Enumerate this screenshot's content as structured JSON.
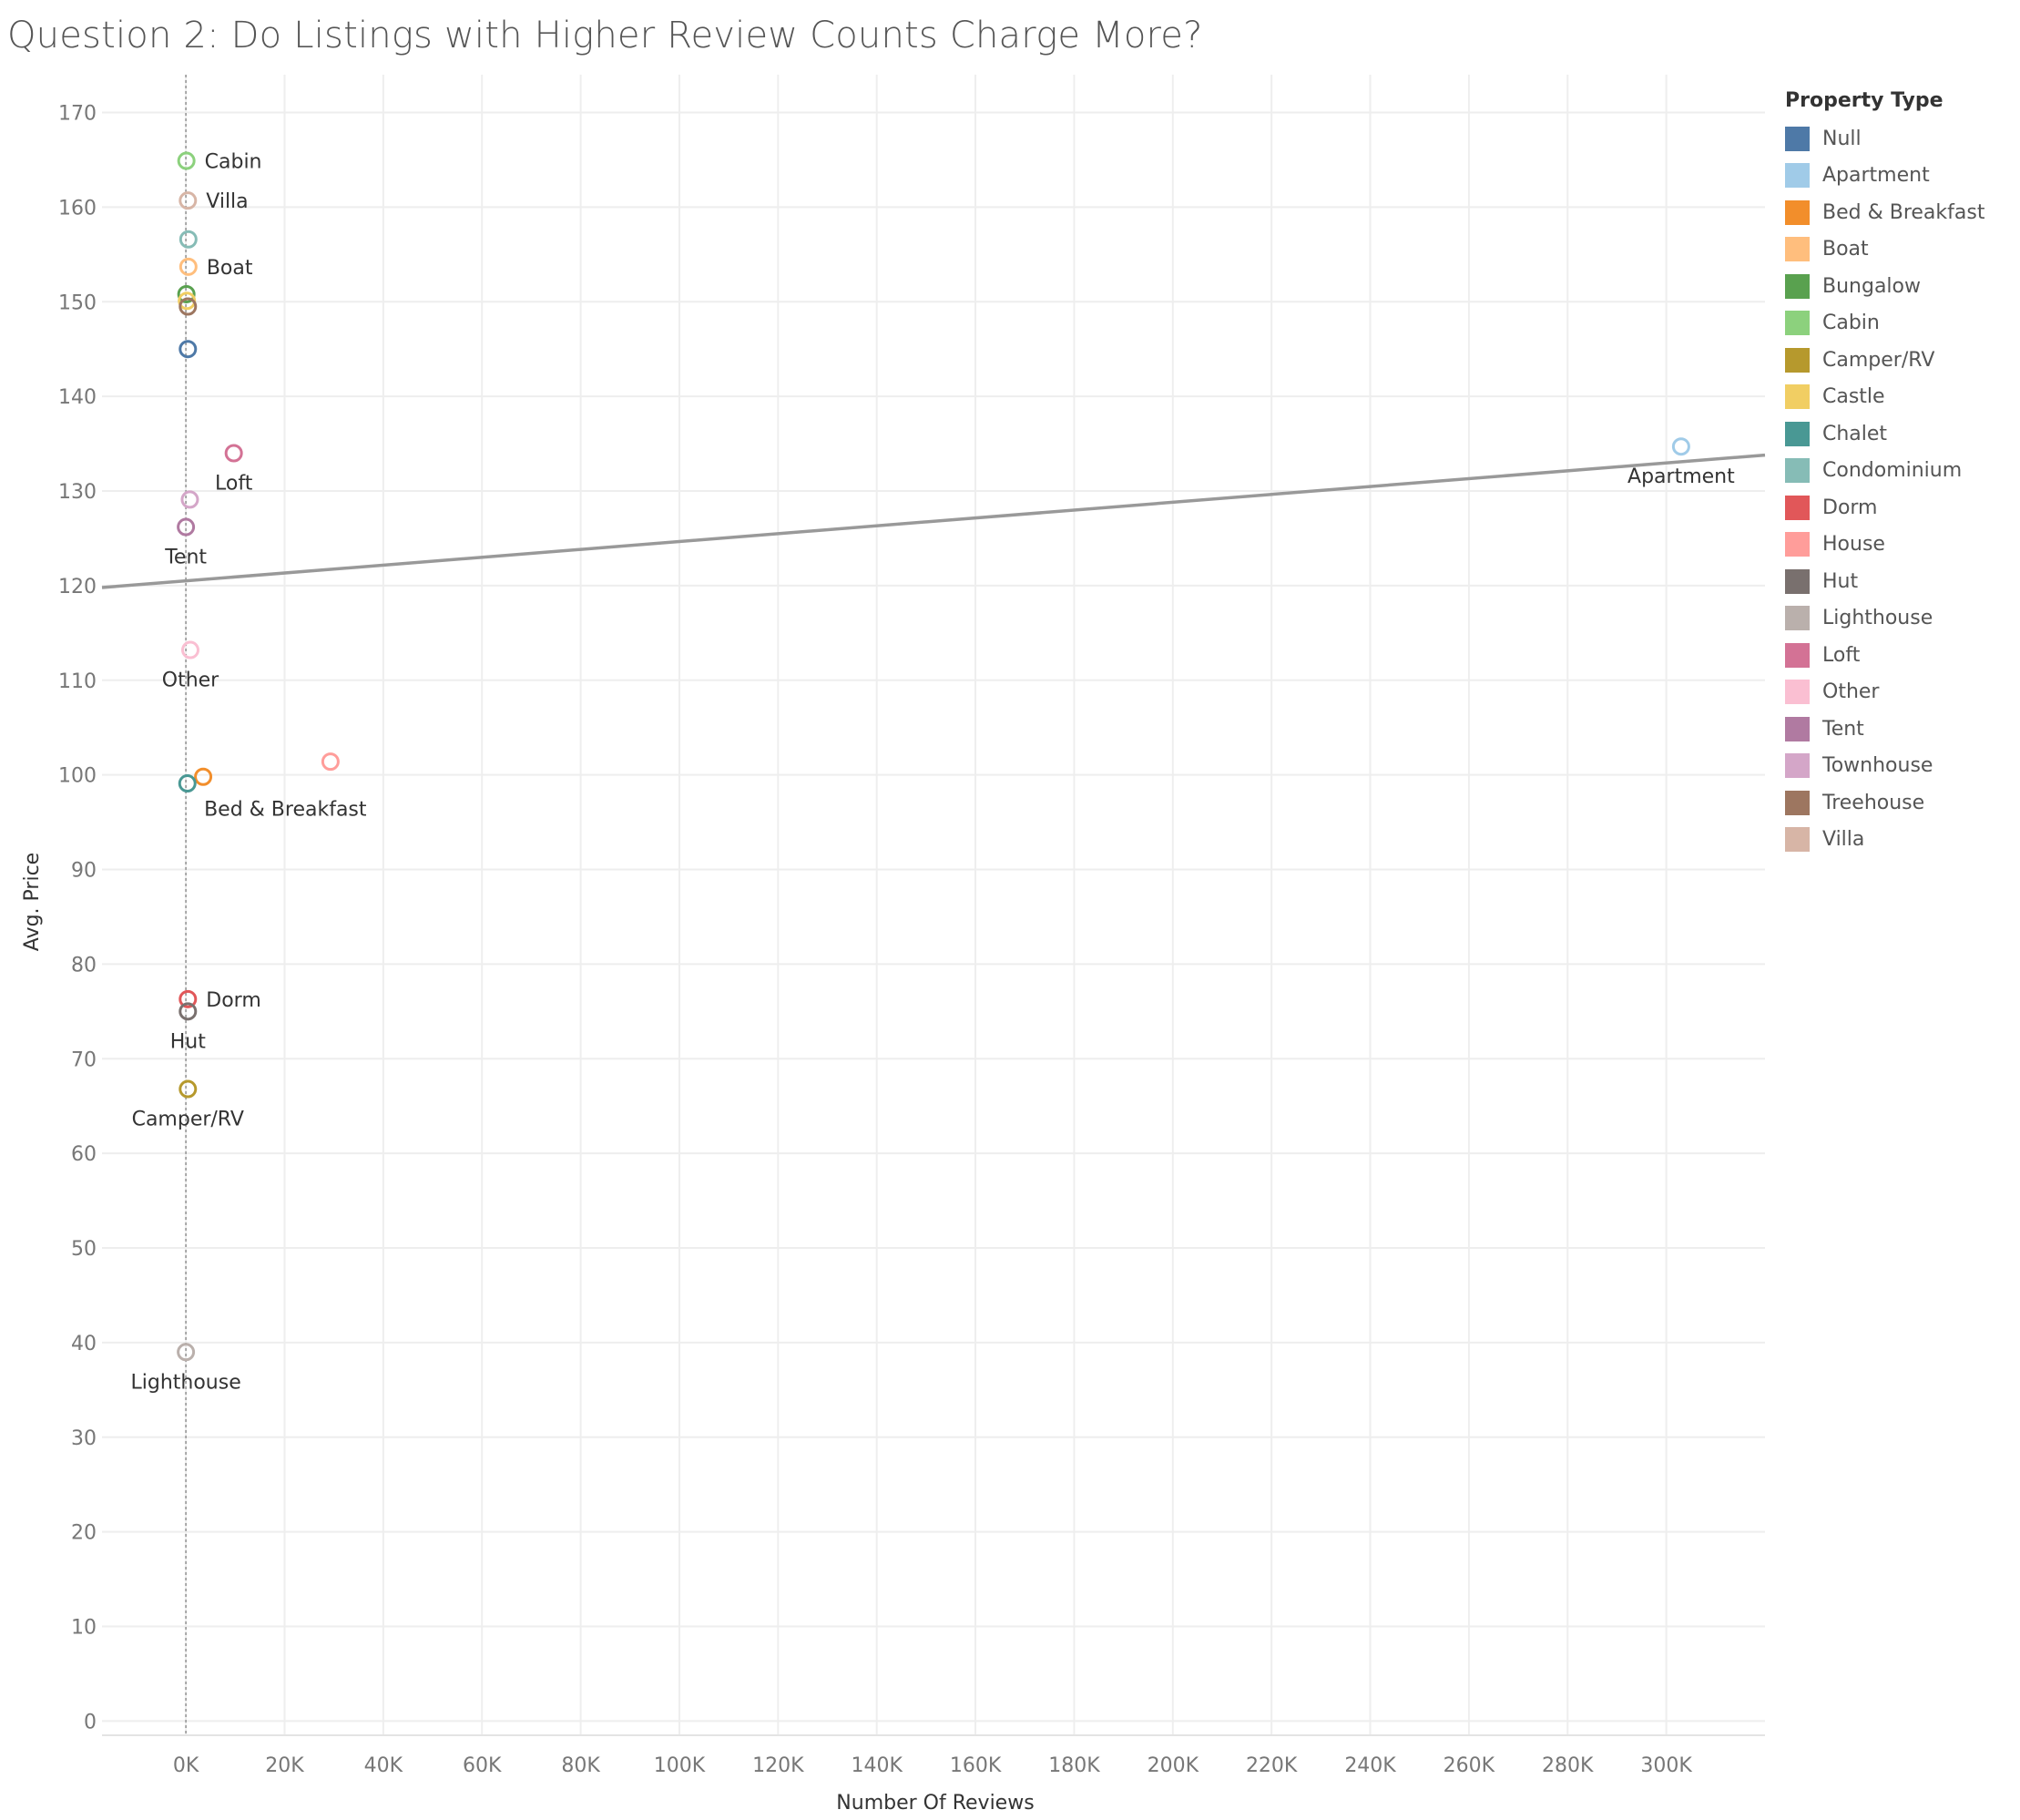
{
  "title": "Question 2: Do Listings with Higher Review Counts Charge More?",
  "chart_data": {
    "type": "scatter",
    "xlabel": "Number Of Reviews",
    "ylabel": "Avg. Price",
    "xlim": [
      -17000,
      320000
    ],
    "ylim": [
      -1.5,
      174
    ],
    "x_ticks": [
      0,
      20000,
      40000,
      60000,
      80000,
      100000,
      120000,
      140000,
      160000,
      180000,
      200000,
      220000,
      240000,
      260000,
      280000,
      300000
    ],
    "x_tick_labels": [
      "0K",
      "20K",
      "40K",
      "60K",
      "80K",
      "100K",
      "120K",
      "140K",
      "160K",
      "180K",
      "200K",
      "220K",
      "240K",
      "260K",
      "280K",
      "300K"
    ],
    "y_ticks": [
      0,
      10,
      20,
      30,
      40,
      50,
      60,
      70,
      80,
      90,
      100,
      110,
      120,
      130,
      140,
      150,
      160,
      170
    ],
    "y_tick_labels": [
      "0",
      "10",
      "20",
      "30",
      "40",
      "50",
      "60",
      "70",
      "80",
      "90",
      "100",
      "110",
      "120",
      "130",
      "140",
      "150",
      "160",
      "170"
    ],
    "grid": true,
    "zero_line": true,
    "trend_line": {
      "x": [
        -17000,
        320000
      ],
      "y": [
        119.8,
        133.8
      ]
    },
    "legend": {
      "title": "Property Type",
      "placement": "right",
      "entries": [
        "Null",
        "Apartment",
        "Bed & Breakfast",
        "Boat",
        "Bungalow",
        "Cabin",
        "Camper/RV",
        "Castle",
        "Chalet",
        "Condominium",
        "Dorm",
        "House",
        "Hut",
        "Lighthouse",
        "Loft",
        "Other",
        "Tent",
        "Townhouse",
        "Treehouse",
        "Villa"
      ]
    },
    "points": [
      {
        "category": "Null",
        "x": 400,
        "y": 145.0,
        "label": "",
        "color": "#4e79a7"
      },
      {
        "category": "Apartment",
        "x": 303000,
        "y": 134.7,
        "label": "Apartment",
        "label_pos": "below",
        "color": "#a0cbe8"
      },
      {
        "category": "Bed & Breakfast",
        "x": 3500,
        "y": 99.8,
        "label": "Bed & Breakfast",
        "label_pos": "below-right",
        "color": "#f28e2b"
      },
      {
        "category": "Boat",
        "x": 500,
        "y": 153.7,
        "label": "Boat",
        "label_pos": "right",
        "color": "#ffbe7d"
      },
      {
        "category": "Bungalow",
        "x": 100,
        "y": 150.8,
        "label": "",
        "color": "#59a14f"
      },
      {
        "category": "Cabin",
        "x": 100,
        "y": 164.9,
        "label": "Cabin",
        "label_pos": "right",
        "color": "#8cd17d"
      },
      {
        "category": "Camper/RV",
        "x": 400,
        "y": 66.8,
        "label": "Camper/RV",
        "label_pos": "below",
        "color": "#b6992d"
      },
      {
        "category": "Castle",
        "x": 200,
        "y": 150.1,
        "label": "",
        "color": "#f1ce63"
      },
      {
        "category": "Chalet",
        "x": 300,
        "y": 99.1,
        "label": "",
        "color": "#499894"
      },
      {
        "category": "Condominium",
        "x": 500,
        "y": 156.6,
        "label": "",
        "color": "#86bcb6"
      },
      {
        "category": "Dorm",
        "x": 400,
        "y": 76.3,
        "label": "Dorm",
        "label_pos": "right",
        "color": "#e15759"
      },
      {
        "category": "House",
        "x": 29300,
        "y": 101.4,
        "label": "",
        "color": "#ff9d9a"
      },
      {
        "category": "Hut",
        "x": 400,
        "y": 75.0,
        "label": "Hut",
        "label_pos": "below",
        "color": "#79706e"
      },
      {
        "category": "Lighthouse",
        "x": 0,
        "y": 39.0,
        "label": "Lighthouse",
        "label_pos": "below",
        "color": "#bab0ac"
      },
      {
        "category": "Loft",
        "x": 9700,
        "y": 134.0,
        "label": "Loft",
        "label_pos": "below",
        "color": "#d37295"
      },
      {
        "category": "Other",
        "x": 900,
        "y": 113.2,
        "label": "Other",
        "label_pos": "below",
        "color": "#fabfd2"
      },
      {
        "category": "Tent",
        "x": 0,
        "y": 126.2,
        "label": "Tent",
        "label_pos": "below",
        "color": "#b07aa1"
      },
      {
        "category": "Townhouse",
        "x": 800,
        "y": 129.1,
        "label": "",
        "color": "#d4a6c8"
      },
      {
        "category": "Treehouse",
        "x": 400,
        "y": 149.5,
        "label": "",
        "color": "#9d7660"
      },
      {
        "category": "Villa",
        "x": 400,
        "y": 160.7,
        "label": "Villa",
        "label_pos": "right",
        "color": "#d7b5a6"
      }
    ]
  }
}
